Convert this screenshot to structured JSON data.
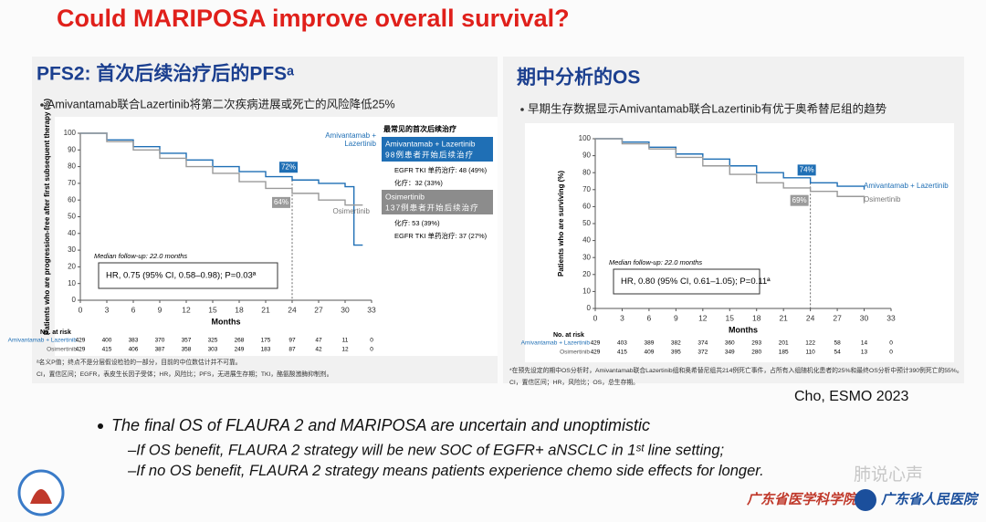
{
  "title": "Could MARIPOSA improve overall survival?",
  "chart_data": [
    {
      "type": "line",
      "title": "PFS2: 首次后续治疗后的PFSᵃ",
      "subtitle": "Amivantamab联合Lazertinib将第二次疾病进展或死亡的风险降低25%",
      "ylabel": "Patients who are progression-free after first subsequent therapy (%)",
      "xlabel": "Months",
      "x": [
        0,
        3,
        6,
        9,
        12,
        15,
        18,
        21,
        24,
        27,
        30,
        31,
        32
      ],
      "series": [
        {
          "name": "Amivantamab + Lazertinib",
          "color": "#1f6fb5",
          "values": [
            100,
            96,
            92,
            88,
            84,
            80,
            77,
            74,
            72,
            70,
            68,
            33,
            33
          ],
          "value_labels": [
            null,
            null,
            null,
            null,
            null,
            null,
            null,
            null,
            "72%",
            null,
            null,
            null,
            null
          ]
        },
        {
          "name": "Osimertinib",
          "color": "#9a9a9a",
          "values": [
            100,
            95,
            90,
            85,
            80,
            76,
            71,
            67,
            64,
            60,
            57,
            57,
            57
          ],
          "value_labels": [
            null,
            null,
            null,
            null,
            null,
            null,
            null,
            null,
            "64%",
            null,
            null,
            null,
            null
          ]
        }
      ],
      "xlim": [
        0,
        33
      ],
      "ylim": [
        0,
        100
      ],
      "xticks": [
        0,
        3,
        6,
        9,
        12,
        15,
        18,
        21,
        24,
        27,
        30,
        33
      ],
      "yticks": [
        0,
        10,
        20,
        30,
        40,
        50,
        60,
        70,
        80,
        90,
        100
      ],
      "median_note": "Median follow-up: 22.0 months",
      "hr_text": "HR, 0.75 (95% CI, 0.58–0.98); P=0.03ª",
      "at_risk": {
        "title": "No. at risk",
        "rows": [
          {
            "name": "Amivantamab + Lazertinib",
            "values": [
              429,
              400,
              383,
              370,
              357,
              325,
              268,
              175,
              97,
              47,
              11,
              0
            ]
          },
          {
            "name": "Osimertinib",
            "values": [
              429,
              415,
              406,
              387,
              358,
              303,
              249,
              183,
              87,
              42,
              12,
              0
            ]
          }
        ]
      },
      "footnotes": [
        "ᵃ名义P值；终点不是分层假设检验的一部分，目前的中位数估计并不可靠。",
        "CI，置信区间；EGFR，表皮生长因子受体；HR，风险比；PFS，无进展生存期；TKI，酪氨酸激酶抑制剂。"
      ]
    },
    {
      "type": "line",
      "title": "期中分析的OS",
      "subtitle": "早期生存数据显示Amivantamab联合Lazertinib有优于奥希替尼组的趋势",
      "ylabel": "Patients who are surviving (%)",
      "xlabel": "Months",
      "x": [
        0,
        3,
        6,
        9,
        12,
        15,
        18,
        21,
        24,
        27,
        30
      ],
      "series": [
        {
          "name": "Amivantamab + Lazertinib",
          "color": "#1f6fb5",
          "values": [
            100,
            98,
            95,
            91,
            88,
            84,
            80,
            77,
            74,
            72,
            70
          ],
          "value_labels": [
            null,
            null,
            null,
            null,
            null,
            null,
            null,
            null,
            "74%",
            null,
            null
          ]
        },
        {
          "name": "Osimertinib",
          "color": "#9a9a9a",
          "values": [
            100,
            97,
            94,
            89,
            84,
            79,
            74,
            71,
            69,
            66,
            62
          ],
          "value_labels": [
            null,
            null,
            null,
            null,
            null,
            null,
            null,
            null,
            "69%",
            null,
            null
          ]
        }
      ],
      "xlim": [
        0,
        33
      ],
      "ylim": [
        0,
        100
      ],
      "xticks": [
        0,
        3,
        6,
        9,
        12,
        15,
        18,
        21,
        24,
        27,
        30,
        33
      ],
      "yticks": [
        0,
        10,
        20,
        30,
        40,
        50,
        60,
        70,
        80,
        90,
        100
      ],
      "median_note": "Median follow-up: 22.0 months",
      "hr_text": "HR, 0.80 (95% CI, 0.61–1.05); P=0.11ª",
      "at_risk": {
        "title": "No. at risk",
        "rows": [
          {
            "name": "Amivantamab + Lazertinib",
            "values": [
              429,
              403,
              389,
              382,
              374,
              360,
              293,
              201,
              122,
              58,
              14,
              0
            ]
          },
          {
            "name": "Osimertinib",
            "values": [
              429,
              415,
              409,
              395,
              372,
              349,
              280,
              185,
              110,
              54,
              13,
              0
            ]
          }
        ]
      },
      "footnotes": [
        "*在预先设定的期中OS分析时，Amivantamab联合Lazertinib组和奥希替尼组共214例死亡事件，占所有入组随机化患者的25%和最终OS分析中预计390例死亡的55%。",
        "CI，置信区间；HR，风险比；OS，总生存期。"
      ]
    }
  ],
  "subsequent": {
    "title": "最常见的首次后续治疗",
    "groups": [
      {
        "name": "Amivantamab + Lazertinib",
        "count": "98例患者开始后续治疗",
        "rows": [
          "EGFR TKI 单药治疗: 48 (49%)",
          "化疗：32 (33%)"
        ]
      },
      {
        "name": "Osimertinib",
        "count": "137例患者开始后续治疗",
        "rows": [
          "化疗: 53 (39%)",
          "EGFR TKI 单药治疗: 37 (27%)"
        ]
      }
    ]
  },
  "citation": "Cho, ESMO 2023",
  "bullets": {
    "main": "The final OS of FLAURA 2 and MARIPOSA are uncertain and unoptimistic",
    "subs": [
      "–If OS benefit, FLAURA 2 strategy will be new SOC of EGFR+ aNSCLC in 1ˢᵗ line setting;",
      "–If no OS benefit, FLAURA 2 strategy means patients experience chemo side effects for longer."
    ]
  },
  "logos": {
    "left": "广东省医学科学院",
    "right": "广东省人民医院"
  },
  "watermark": "肺说心声"
}
